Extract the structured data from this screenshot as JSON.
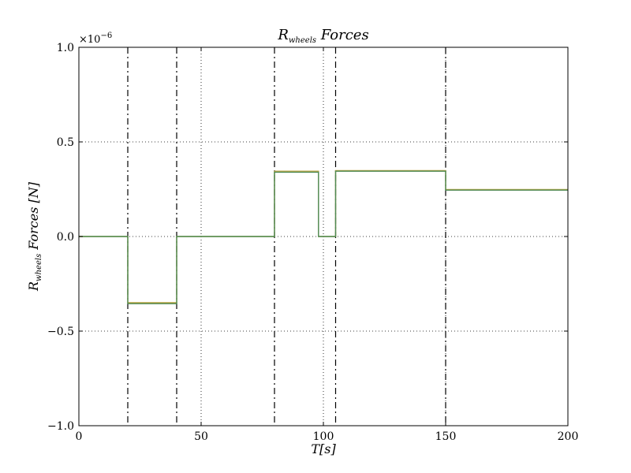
{
  "chart_data": {
    "type": "line",
    "title": {
      "main": "R",
      "sub": "wheels",
      "rest": " Forces"
    },
    "xlabel": "T[s]",
    "ylabel": {
      "main": "R",
      "sub": "wheels",
      "rest": " Forces [N]"
    },
    "y_exponent": {
      "base": "×10",
      "power": "−6"
    },
    "xlim": [
      0,
      200
    ],
    "ylim": [
      -1e-06,
      1e-06
    ],
    "x_ticks": [
      {
        "value": 0,
        "label": "0"
      },
      {
        "value": 50,
        "label": "50"
      },
      {
        "value": 100,
        "label": "100"
      },
      {
        "value": 150,
        "label": "150"
      },
      {
        "value": 200,
        "label": "200"
      }
    ],
    "y_ticks": [
      {
        "value": -1e-06,
        "label": "−1.0"
      },
      {
        "value": -5e-07,
        "label": "−0.5"
      },
      {
        "value": 0,
        "label": "0.0"
      },
      {
        "value": 5e-07,
        "label": "0.5"
      },
      {
        "value": 1e-06,
        "label": "1.0"
      }
    ],
    "grid": "dotted",
    "vertical_markers": [
      20,
      40,
      80,
      105,
      150
    ],
    "series": [
      {
        "color": "#b8a23c",
        "x": [
          0,
          20,
          20,
          40,
          40,
          80,
          80,
          98,
          98,
          105,
          105,
          150,
          150,
          200
        ],
        "y": [
          0,
          0,
          -3.5e-07,
          -3.5e-07,
          0,
          0,
          3.45e-07,
          3.45e-07,
          0,
          0,
          3.48e-07,
          3.48e-07,
          2.48e-07,
          2.48e-07
        ]
      },
      {
        "color": "#4e8a55",
        "x": [
          0,
          20,
          20,
          40,
          40,
          80,
          80,
          98,
          98,
          105,
          105,
          150,
          150,
          200
        ],
        "y": [
          0,
          0,
          -3.55e-07,
          -3.55e-07,
          0,
          0,
          3.4e-07,
          3.4e-07,
          0,
          0,
          3.45e-07,
          3.45e-07,
          2.45e-07,
          2.45e-07
        ]
      }
    ]
  }
}
